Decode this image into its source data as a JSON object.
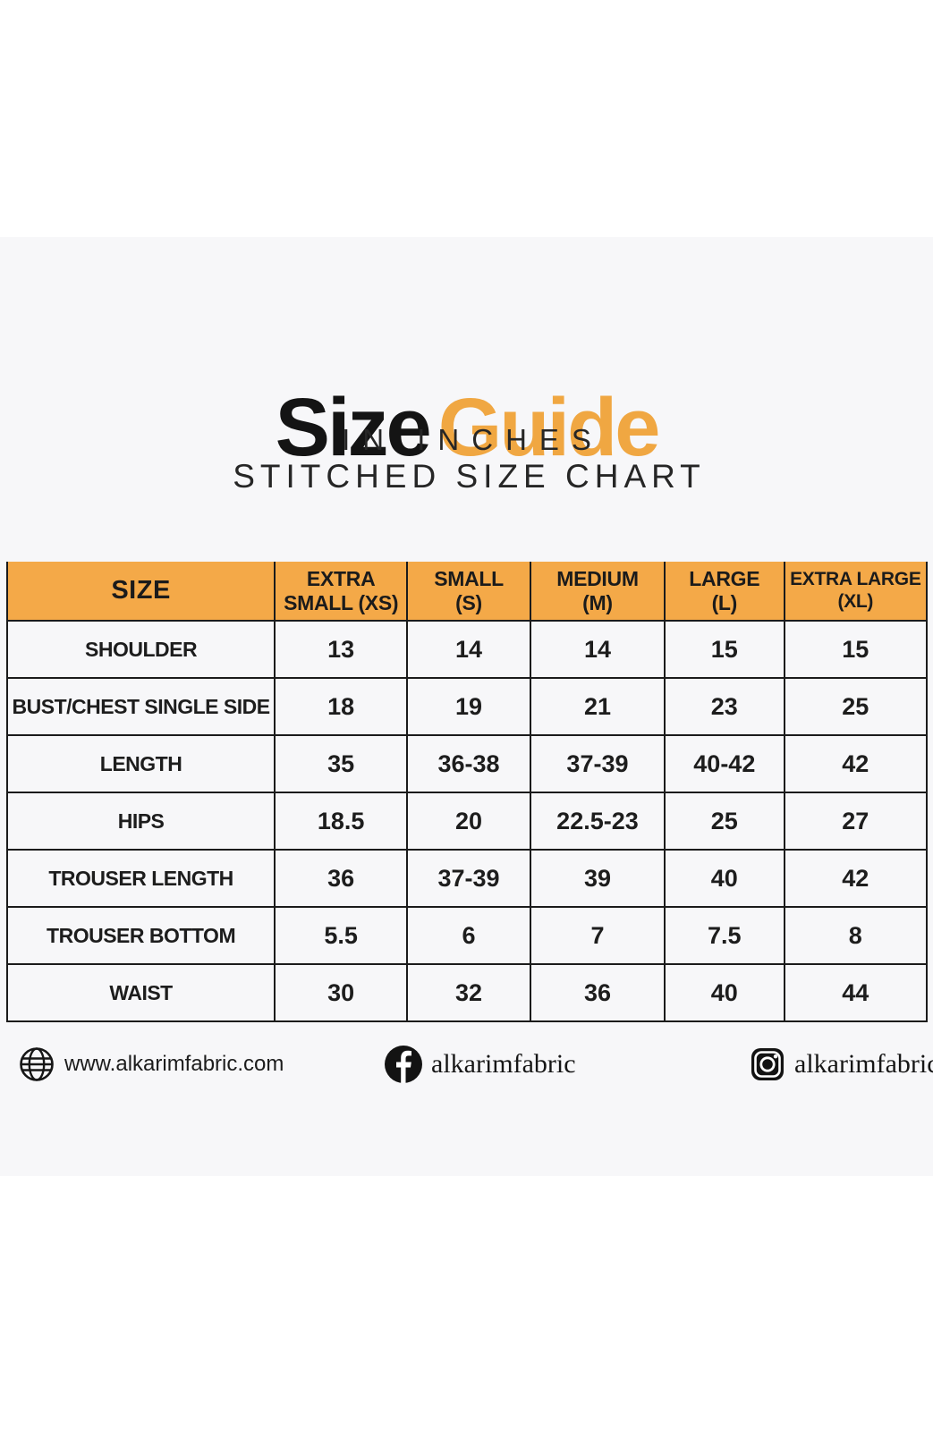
{
  "title": {
    "word1": "Size",
    "word2": "Guide",
    "word2_color": "#f0a742",
    "subtitle1": "IN INCHES",
    "subtitle2": "STITCHED SIZE CHART"
  },
  "colors": {
    "card_background": "#f7f7f9",
    "header_orange": "#f4a948",
    "table_border": "#1b1b1b",
    "title_accent_orange": "#f0a742"
  },
  "table": {
    "display_columns": [
      "SIZE",
      "EXTRA\nSMALL (XS)",
      "SMALL\n(S)",
      "MEDIUM\n(M)",
      "LARGE\n(L)",
      "EXTRA LARGE\n(XL)"
    ]
  },
  "chart_data": {
    "type": "table",
    "title": "Size Guide",
    "units": "inches",
    "columns": [
      "SIZE",
      "EXTRA SMALL (XS)",
      "SMALL (S)",
      "MEDIUM (M)",
      "LARGE (L)",
      "EXTRA LARGE (XL)"
    ],
    "rows": [
      [
        "SHOULDER",
        "13",
        "14",
        "14",
        "15",
        "15"
      ],
      [
        "BUST/CHEST SINGLE SIDE",
        "18",
        "19",
        "21",
        "23",
        "25"
      ],
      [
        "LENGTH",
        "35",
        "36-38",
        "37-39",
        "40-42",
        "42"
      ],
      [
        "HIPS",
        "18.5",
        "20",
        "22.5-23",
        "25",
        "27"
      ],
      [
        "TROUSER LENGTH",
        "36",
        "37-39",
        "39",
        "40",
        "42"
      ],
      [
        "TROUSER BOTTOM",
        "5.5",
        "6",
        "7",
        "7.5",
        "8"
      ],
      [
        "WAIST",
        "30",
        "32",
        "36",
        "40",
        "44"
      ]
    ]
  },
  "footer": {
    "website": "www.alkarimfabric.com",
    "facebook_handle": "alkarimfabric",
    "instagram_handle": "alkarimfabrics"
  }
}
